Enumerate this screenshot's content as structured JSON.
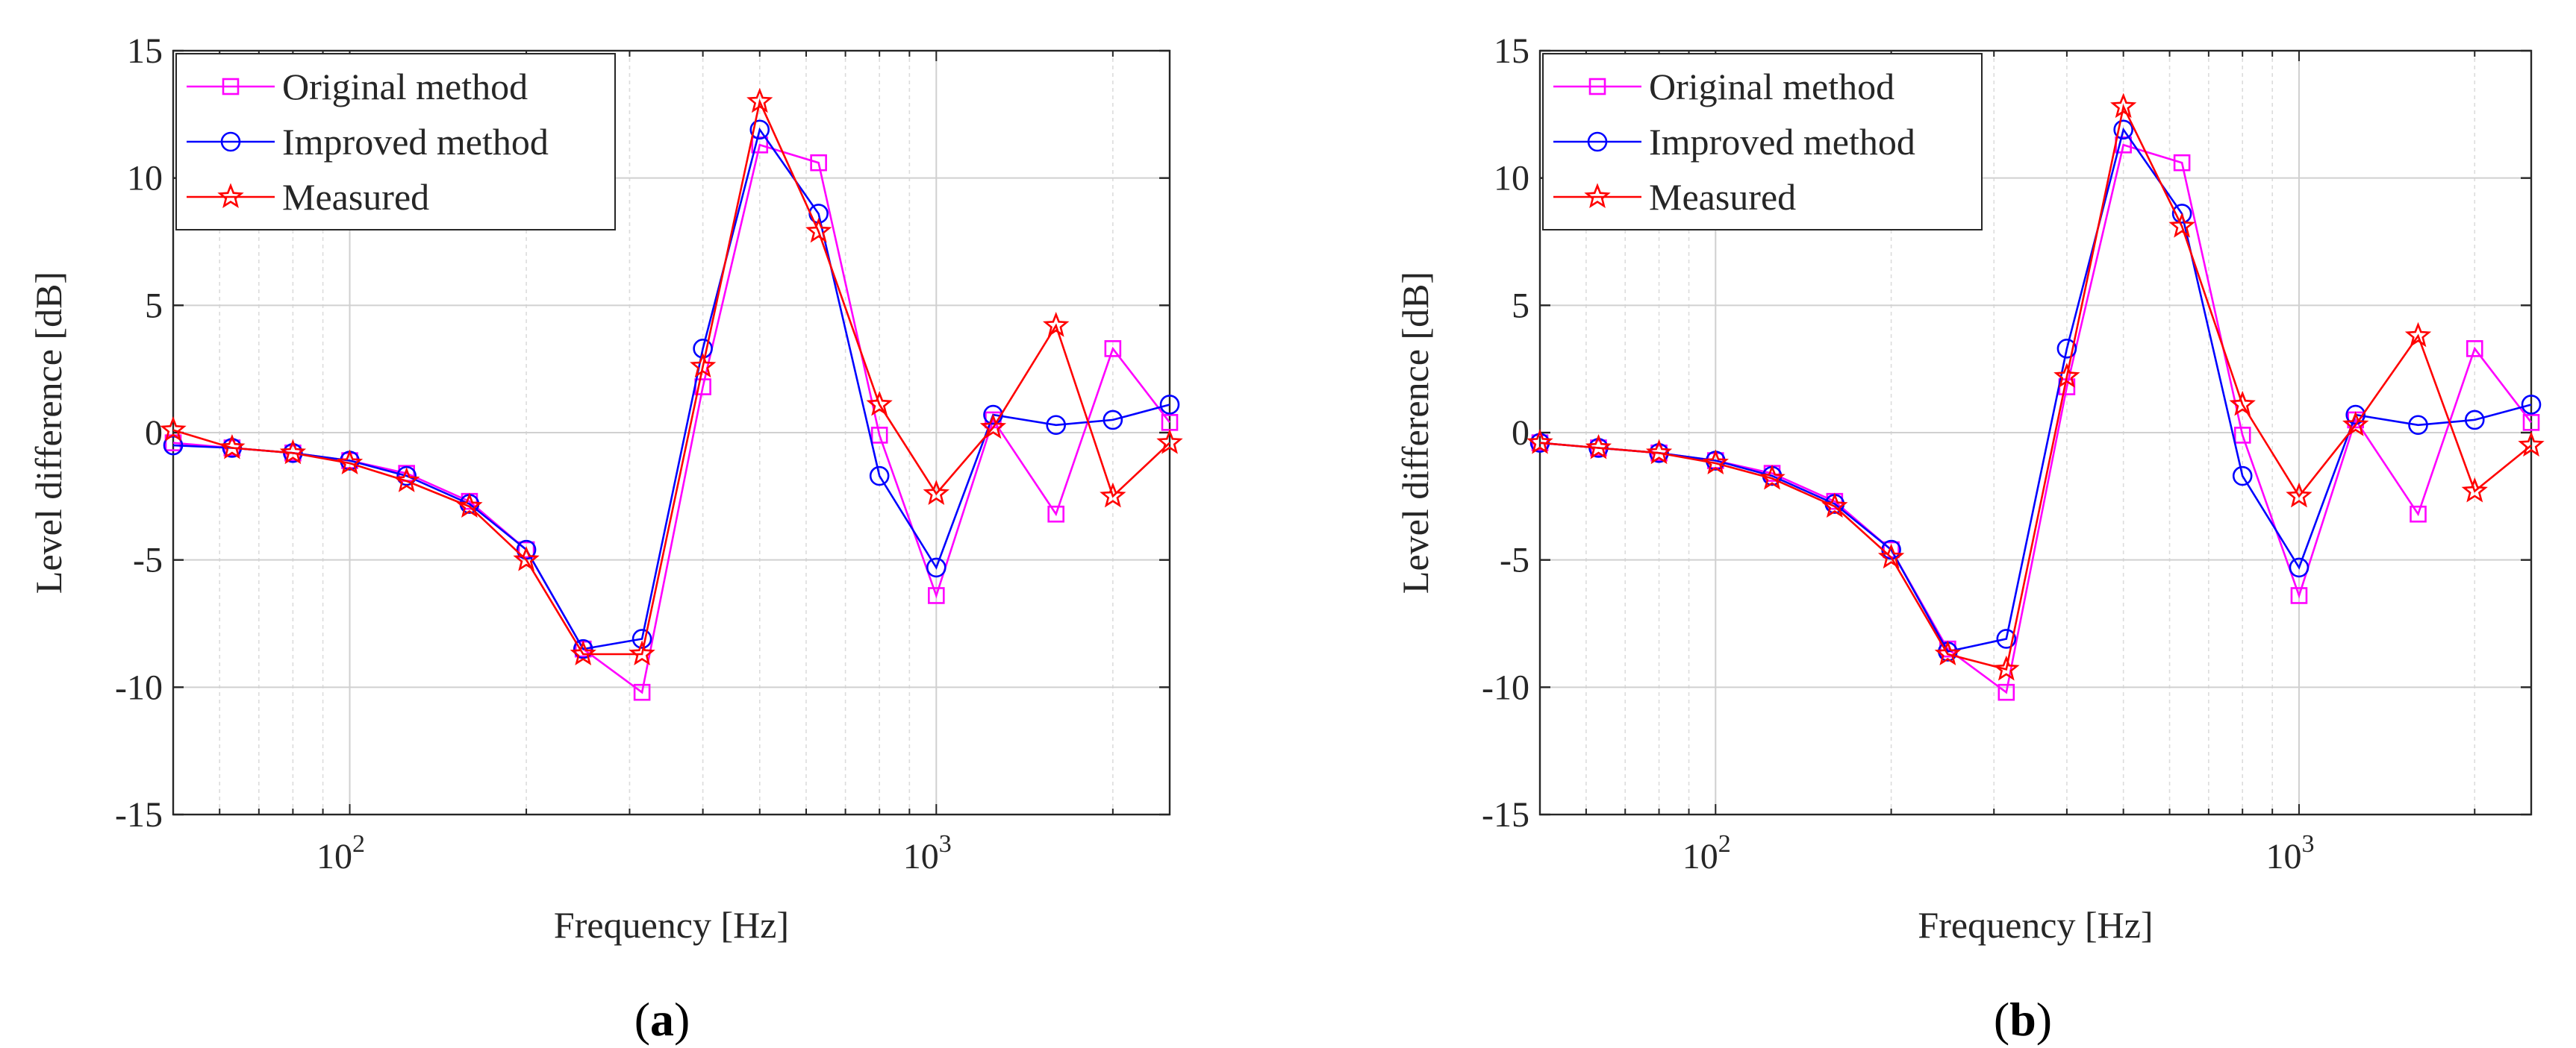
{
  "panels": [
    {
      "label_open": "(",
      "label_letter": "a",
      "label_close": ")"
    },
    {
      "label_open": "(",
      "label_letter": "b",
      "label_close": ")"
    }
  ],
  "chart_data": [
    {
      "type": "line",
      "xscale": "log",
      "xlabel": "Frequency [Hz]",
      "ylabel": "Level difference [dB]",
      "xlim": [
        50,
        2500
      ],
      "ylim": [
        -15,
        15
      ],
      "yticks": [
        -15,
        -10,
        -5,
        0,
        5,
        10,
        15
      ],
      "xticks": [
        {
          "value": 100,
          "base": "10",
          "exp": "2"
        },
        {
          "value": 1000,
          "base": "10",
          "exp": "3"
        }
      ],
      "grid": true,
      "legend_position": "top-left",
      "x": [
        50,
        63,
        80,
        100,
        125,
        160,
        200,
        250,
        315,
        400,
        500,
        630,
        800,
        1000,
        1250,
        1600,
        2000,
        2500
      ],
      "series": [
        {
          "name": "Original method",
          "color": "#ff00ff",
          "marker": "square",
          "values": [
            -0.4,
            -0.6,
            -0.8,
            -1.1,
            -1.6,
            -2.7,
            -4.6,
            -8.5,
            -10.2,
            1.8,
            11.3,
            10.6,
            -0.1,
            -6.4,
            0.5,
            -3.2,
            3.3,
            0.4
          ]
        },
        {
          "name": "Improved method",
          "color": "#0000ff",
          "marker": "circle",
          "values": [
            -0.5,
            -0.6,
            -0.8,
            -1.1,
            -1.7,
            -2.8,
            -4.6,
            -8.5,
            -8.1,
            3.3,
            11.9,
            8.6,
            -1.7,
            -5.3,
            0.7,
            0.3,
            0.5,
            1.1
          ]
        },
        {
          "name": "Measured",
          "color": "#ff0000",
          "marker": "star",
          "values": [
            0.1,
            -0.6,
            -0.8,
            -1.2,
            -1.9,
            -2.9,
            -5.0,
            -8.7,
            -8.7,
            2.6,
            13.0,
            7.9,
            1.1,
            -2.4,
            0.2,
            4.2,
            -2.5,
            -0.4
          ]
        }
      ]
    },
    {
      "type": "line",
      "xscale": "log",
      "xlabel": "Frequency [Hz]",
      "ylabel": "Level difference [dB]",
      "xlim": [
        50,
        2500
      ],
      "ylim": [
        -15,
        15
      ],
      "yticks": [
        -15,
        -10,
        -5,
        0,
        5,
        10,
        15
      ],
      "xticks": [
        {
          "value": 100,
          "base": "10",
          "exp": "2"
        },
        {
          "value": 1000,
          "base": "10",
          "exp": "3"
        }
      ],
      "grid": true,
      "legend_position": "top-left",
      "x": [
        50,
        63,
        80,
        100,
        125,
        160,
        200,
        250,
        315,
        400,
        500,
        630,
        800,
        1000,
        1250,
        1600,
        2000,
        2500
      ],
      "series": [
        {
          "name": "Original method",
          "color": "#ff00ff",
          "marker": "square",
          "values": [
            -0.4,
            -0.6,
            -0.8,
            -1.1,
            -1.6,
            -2.7,
            -4.6,
            -8.5,
            -10.2,
            1.8,
            11.3,
            10.6,
            -0.1,
            -6.4,
            0.5,
            -3.2,
            3.3,
            0.4
          ]
        },
        {
          "name": "Improved method",
          "color": "#0000ff",
          "marker": "circle",
          "values": [
            -0.4,
            -0.6,
            -0.8,
            -1.1,
            -1.7,
            -2.8,
            -4.6,
            -8.6,
            -8.1,
            3.3,
            11.9,
            8.6,
            -1.7,
            -5.3,
            0.7,
            0.3,
            0.5,
            1.1
          ]
        },
        {
          "name": "Measured",
          "color": "#ff0000",
          "marker": "star",
          "values": [
            -0.4,
            -0.6,
            -0.8,
            -1.2,
            -1.8,
            -2.9,
            -4.9,
            -8.7,
            -9.3,
            2.2,
            12.8,
            8.1,
            1.1,
            -2.5,
            0.3,
            3.8,
            -2.3,
            -0.5
          ]
        }
      ]
    }
  ]
}
